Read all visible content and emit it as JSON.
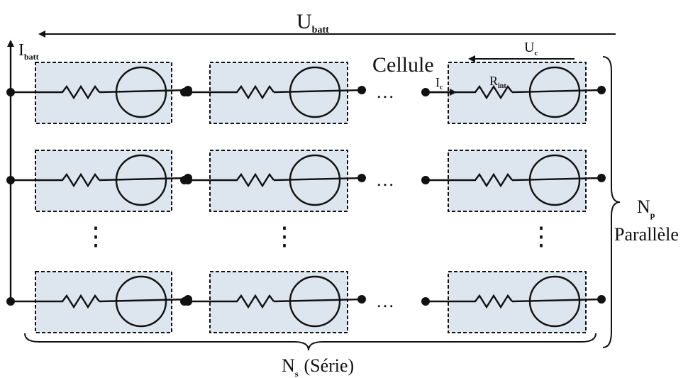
{
  "labels": {
    "u_batt": {
      "main": "U",
      "sub": "batt"
    },
    "i_batt": {
      "main": "I",
      "sub": "batt"
    },
    "cellule": "Cellule",
    "u_c": {
      "main": "U",
      "sub": "c"
    },
    "i_c": {
      "main": "I",
      "sub": "c"
    },
    "r_int": {
      "main": "R",
      "sub": "int"
    },
    "n_p": {
      "main": "N",
      "sub": "p"
    },
    "parallele": "Parallèle",
    "n_s": {
      "main": "N",
      "sub": "s"
    },
    "serie": "(Série)"
  },
  "ellipsis": {
    "horizontal": "…",
    "vertical": "⋮"
  }
}
